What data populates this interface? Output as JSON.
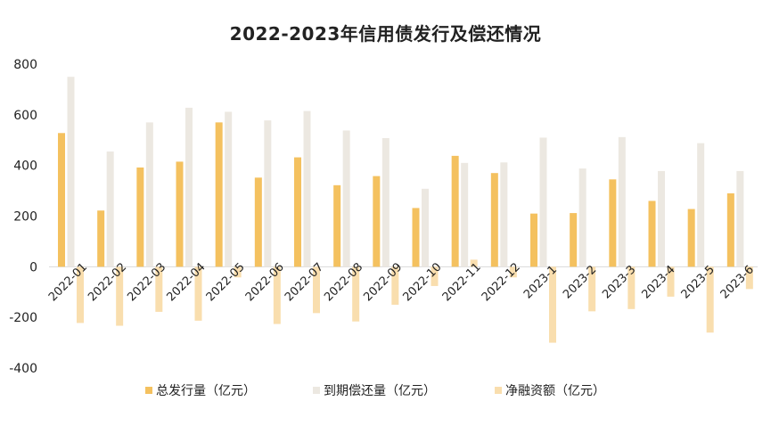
{
  "chart_data": {
    "type": "bar",
    "title": "2022-2023年信用债发行及偿还情况",
    "xlabel": "",
    "ylabel": "",
    "ylim": [
      -400,
      800
    ],
    "yticks": [
      -400,
      -200,
      0,
      200,
      400,
      600,
      800
    ],
    "grid": false,
    "legend_position": "bottom",
    "categories": [
      "2022-01",
      "2022-02",
      "2022-03",
      "2022-04",
      "2022-05",
      "2022-06",
      "2022-07",
      "2022-08",
      "2022-09",
      "2022-10",
      "2022-11",
      "2022-12",
      "2023-1",
      "2023-2",
      "2023-3",
      "2023-4",
      "2023-5",
      "2023-6"
    ],
    "series": [
      {
        "name": "总发行量（亿元）",
        "color": "#F4C15F",
        "values": [
          528,
          222,
          392,
          415,
          570,
          352,
          432,
          322,
          358,
          232,
          438,
          370,
          210,
          212,
          345,
          260,
          228,
          290
        ]
      },
      {
        "name": "到期偿还量（亿元）",
        "color": "#ECE8E1",
        "values": [
          750,
          455,
          570,
          628,
          612,
          578,
          615,
          538,
          508,
          308,
          410,
          412,
          510,
          388,
          512,
          378,
          488,
          378
        ]
      },
      {
        "name": "净融资额（亿元）",
        "color": "#F9DEAE",
        "values": [
          -222,
          -233,
          -178,
          -213,
          -42,
          -226,
          -183,
          -216,
          -150,
          -76,
          28,
          -42,
          -300,
          -176,
          -167,
          -118,
          -260,
          -88
        ]
      }
    ]
  }
}
